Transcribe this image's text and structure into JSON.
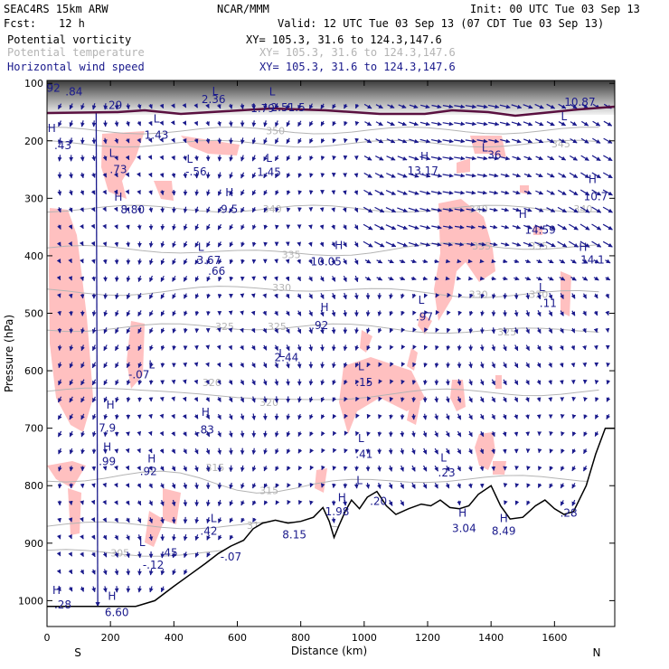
{
  "header": {
    "model": "SEAC4RS 15km ARW",
    "org": "NCAR/MMM",
    "init": "Init: 00 UTC Tue 03 Sep 13",
    "fcst_label": "Fcst:",
    "fcst_value": "12 h",
    "valid": "Valid: 12 UTC Tue 03 Sep 13 (07 CDT Tue 03 Sep 13)"
  },
  "fields": [
    {
      "name": "Potential vorticity",
      "coords": "XY= 105.3, 31.6 to 124.3,147.6",
      "color": "#000000"
    },
    {
      "name": "Potential temperature",
      "coords": "XY= 105.3, 31.6 to 124.3,147.6",
      "color": "#b4b4b4"
    },
    {
      "name": "Horizontal wind speed",
      "coords": "XY= 105.3, 31.6 to 124.3,147.6",
      "color": "#1a1a8c"
    }
  ],
  "colors": {
    "pv_fill": "#ffc0c0",
    "wind_arrow": "#1a1a8c",
    "theta_line": "#b4b4b4",
    "terrain": "#000000",
    "tropopause": "#5a1040"
  },
  "chart_data": {
    "type": "cross-section",
    "xlabel": "Distance (km)",
    "ylabel": "Pressure (hPa)",
    "x_ticks": [
      0,
      200,
      400,
      600,
      800,
      1000,
      1200,
      1400,
      1600
    ],
    "y_ticks": [
      100,
      200,
      300,
      400,
      500,
      600,
      700,
      800,
      900,
      1000
    ],
    "xlim": [
      0,
      1790
    ],
    "ylim": [
      1045,
      95
    ],
    "endpoints": {
      "left": "S",
      "right": "N"
    },
    "theta_contours": [
      {
        "label": "350",
        "km": 720,
        "p": 182
      },
      {
        "label": "345",
        "km": 1620,
        "p": 205
      },
      {
        "label": "340",
        "km": 710,
        "p": 318
      },
      {
        "label": "340",
        "km": 1360,
        "p": 318
      },
      {
        "label": "340",
        "km": 1690,
        "p": 318
      },
      {
        "label": "335",
        "km": 770,
        "p": 398
      },
      {
        "label": "335",
        "km": 1370,
        "p": 383
      },
      {
        "label": "335",
        "km": 1550,
        "p": 383
      },
      {
        "label": "330",
        "km": 740,
        "p": 455
      },
      {
        "label": "330",
        "km": 1360,
        "p": 467
      },
      {
        "label": "330",
        "km": 1550,
        "p": 467
      },
      {
        "label": "325",
        "km": 560,
        "p": 523
      },
      {
        "label": "325",
        "km": 725,
        "p": 523
      },
      {
        "label": "325",
        "km": 1450,
        "p": 532
      },
      {
        "label": "320",
        "km": 520,
        "p": 620
      },
      {
        "label": "320",
        "km": 700,
        "p": 655
      },
      {
        "label": "315",
        "km": 530,
        "p": 768
      },
      {
        "label": "315",
        "km": 700,
        "p": 808
      },
      {
        "label": "310",
        "km": 660,
        "p": 869
      },
      {
        "label": "305",
        "km": 230,
        "p": 917
      }
    ],
    "extrema_labels": [
      {
        "label": ".92",
        "km": 15,
        "p": 108
      },
      {
        "label": ".84",
        "km": 85,
        "p": 115
      },
      {
        "label": "H",
        "km": 15,
        "p": 178
      },
      {
        "label": ".43",
        "km": 50,
        "p": 208
      },
      {
        "label": ".29",
        "km": 210,
        "p": 138
      },
      {
        "label": "L",
        "km": 205,
        "p": 222
      },
      {
        "label": ".73",
        "km": 225,
        "p": 250
      },
      {
        "label": "L",
        "km": 345,
        "p": 162
      },
      {
        "label": "1.43",
        "km": 345,
        "p": 190
      },
      {
        "label": "L",
        "km": 450,
        "p": 232
      },
      {
        "label": "-.56",
        "km": 470,
        "p": 254
      },
      {
        "label": "L",
        "km": 530,
        "p": 114
      },
      {
        "label": "2.36",
        "km": 525,
        "p": 128
      },
      {
        "label": "L",
        "km": 710,
        "p": 115
      },
      {
        "label": "1.79",
        "km": 680,
        "p": 144
      },
      {
        "label": "2.51.5",
        "km": 760,
        "p": 142
      },
      {
        "label": "L",
        "km": 700,
        "p": 230
      },
      {
        "label": "1.45",
        "km": 700,
        "p": 255
      },
      {
        "label": "H",
        "km": 225,
        "p": 298
      },
      {
        "label": "8.80",
        "km": 270,
        "p": 320
      },
      {
        "label": "H",
        "km": 575,
        "p": 290
      },
      {
        "label": "9.5",
        "km": 575,
        "p": 319
      },
      {
        "label": "L",
        "km": 485,
        "p": 385
      },
      {
        "label": "3.67",
        "km": 510,
        "p": 408
      },
      {
        "label": ".66",
        "km": 535,
        "p": 427
      },
      {
        "label": "H",
        "km": 920,
        "p": 382
      },
      {
        "label": "10.05",
        "km": 880,
        "p": 410
      },
      {
        "label": "H",
        "km": 875,
        "p": 490
      },
      {
        "label": ".92",
        "km": 860,
        "p": 521
      },
      {
        "label": "L",
        "km": 740,
        "p": 570
      },
      {
        "label": "2.44",
        "km": 755,
        "p": 577
      },
      {
        "label": "L",
        "km": 330,
        "p": 590
      },
      {
        "label": "-.07",
        "km": 290,
        "p": 607
      },
      {
        "label": "L",
        "km": 990,
        "p": 593
      },
      {
        "label": ".15",
        "km": 1000,
        "p": 620
      },
      {
        "label": "L",
        "km": 1180,
        "p": 477
      },
      {
        "label": ".97",
        "km": 1190,
        "p": 506
      },
      {
        "label": "H",
        "km": 1190,
        "p": 227
      },
      {
        "label": "13.17",
        "km": 1185,
        "p": 252
      },
      {
        "label": "L",
        "km": 1380,
        "p": 212
      },
      {
        "label": ".36",
        "km": 1405,
        "p": 225
      },
      {
        "label": "H",
        "km": 1500,
        "p": 328
      },
      {
        "label": "14.59",
        "km": 1555,
        "p": 355
      },
      {
        "label": "H",
        "km": 1690,
        "p": 385
      },
      {
        "label": "14.1",
        "km": 1720,
        "p": 407
      },
      {
        "label": "L",
        "km": 1630,
        "p": 158
      },
      {
        "label": "10.87",
        "km": 1680,
        "p": 133
      },
      {
        "label": "H",
        "km": 1720,
        "p": 267
      },
      {
        "label": "10.7",
        "km": 1730,
        "p": 297
      },
      {
        "label": "L",
        "km": 1560,
        "p": 455
      },
      {
        "label": ".11",
        "km": 1580,
        "p": 483
      },
      {
        "label": "H",
        "km": 500,
        "p": 672
      },
      {
        "label": ".83",
        "km": 500,
        "p": 703
      },
      {
        "label": "H",
        "km": 200,
        "p": 660
      },
      {
        "label": "7.9",
        "km": 190,
        "p": 700
      },
      {
        "label": "H",
        "km": 190,
        "p": 733
      },
      {
        "label": ".99",
        "km": 190,
        "p": 758
      },
      {
        "label": "H",
        "km": 330,
        "p": 753
      },
      {
        "label": ".92",
        "km": 320,
        "p": 775
      },
      {
        "label": "L",
        "km": 990,
        "p": 718
      },
      {
        "label": ".41",
        "km": 1000,
        "p": 745
      },
      {
        "label": "L",
        "km": 1250,
        "p": 752
      },
      {
        "label": ".23",
        "km": 1260,
        "p": 778
      },
      {
        "label": "L",
        "km": 525,
        "p": 857
      },
      {
        "label": ".42",
        "km": 510,
        "p": 879
      },
      {
        "label": "L",
        "km": 300,
        "p": 899
      },
      {
        "label": ".45",
        "km": 385,
        "p": 917
      },
      {
        "label": "-.12",
        "km": 335,
        "p": 938
      },
      {
        "label": "-.07",
        "km": 580,
        "p": 924
      },
      {
        "label": "8.15",
        "km": 780,
        "p": 885
      },
      {
        "label": "H",
        "km": 930,
        "p": 821
      },
      {
        "label": "1.98",
        "km": 915,
        "p": 845
      },
      {
        "label": "L",
        "km": 985,
        "p": 791
      },
      {
        "label": ".20",
        "km": 1045,
        "p": 827
      },
      {
        "label": "H",
        "km": 1310,
        "p": 848
      },
      {
        "label": "3.04",
        "km": 1315,
        "p": 874
      },
      {
        "label": "H",
        "km": 1440,
        "p": 857
      },
      {
        "label": "8.49",
        "km": 1440,
        "p": 879
      },
      {
        "label": ".28",
        "km": 1645,
        "p": 848
      },
      {
        "label": "H",
        "km": 30,
        "p": 982
      },
      {
        "label": ".28",
        "km": 50,
        "p": 1007
      },
      {
        "label": "H",
        "km": 205,
        "p": 992
      },
      {
        "label": "6.60",
        "km": 220,
        "p": 1021
      }
    ]
  }
}
